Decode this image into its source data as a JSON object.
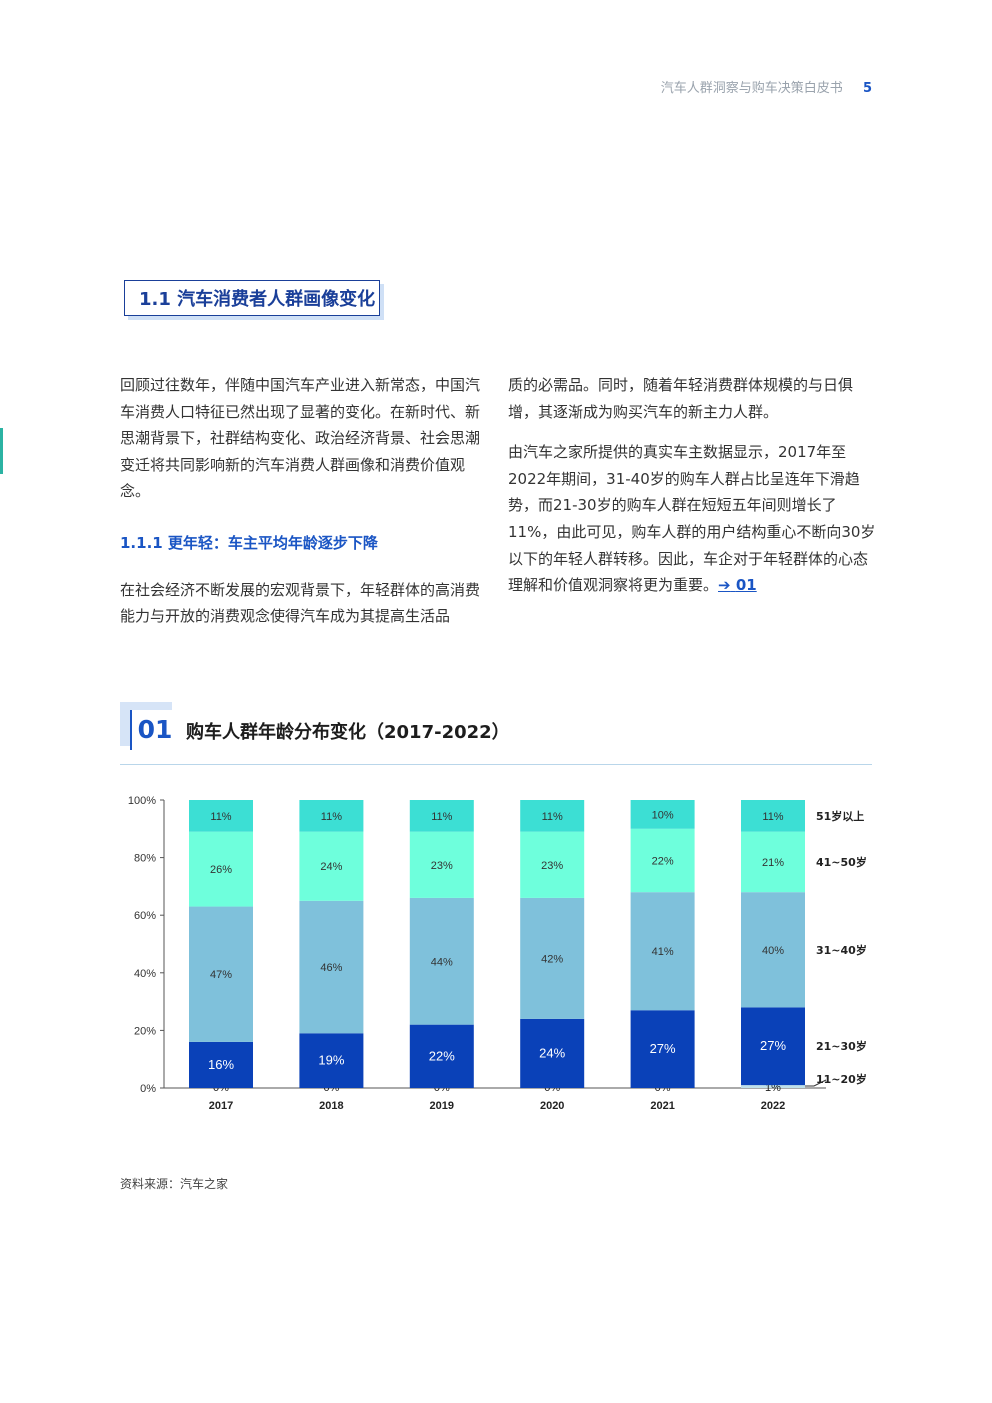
{
  "header": {
    "doc_title": "汽车人群洞察与购车决策白皮书",
    "page_number": "5"
  },
  "section": {
    "title": "1.1 汽车消费者人群画像变化"
  },
  "body": {
    "left_para1": "回顾过往数年，伴随中国汽车产业进入新常态，中国汽车消费人口特征已然出现了显著的变化。在新时代、新思潮背景下，社群结构变化、政治经济背景、社会思潮变迁将共同影响新的汽车消费人群画像和消费价值观念。",
    "subsection_title": "1.1.1 更年轻：车主平均年龄逐步下降",
    "left_para2": "在社会经济不断发展的宏观背景下，年轻群体的高消费能力与开放的消费观念使得汽车成为其提高生活品",
    "right_para1": "质的必需品。同时，随着年轻消费群体规模的与日俱增，其逐渐成为购买汽车的新主力人群。",
    "right_para2": "由汽车之家所提供的真实车主数据显示，2017年至2022年期间，31-40岁的购车人群占比呈连年下滑趋势，而21-30岁的购车人群在短短五年间则增长了11%，由此可见，购车人群的用户结构重心不断向30岁以下的年轻人群转移。因此，车企对于年轻群体的心态理解和价值观洞察将更为重要。",
    "ref_arrow": "➔",
    "ref_link": "01"
  },
  "figure": {
    "number": "01",
    "title": "购车人群年龄分布变化（2017-2022）"
  },
  "chart_data": {
    "type": "bar",
    "stacked": true,
    "categories": [
      "2017",
      "2018",
      "2019",
      "2020",
      "2021",
      "2022"
    ],
    "ylim": [
      0,
      100
    ],
    "yticks": [
      "0%",
      "20%",
      "40%",
      "60%",
      "80%",
      "100%"
    ],
    "series": [
      {
        "name": "11~20岁",
        "values": [
          0,
          0,
          0,
          0,
          0,
          1
        ],
        "labels": [
          "0%",
          "0%",
          "0%",
          "0%",
          "0%",
          "1%"
        ],
        "color": "#bfe0ea"
      },
      {
        "name": "21~30岁",
        "values": [
          16,
          19,
          22,
          24,
          27,
          27
        ],
        "labels": [
          "16%",
          "19%",
          "22%",
          "24%",
          "27%",
          "27%"
        ],
        "color": "#0a41b8"
      },
      {
        "name": "31~40岁",
        "values": [
          47,
          46,
          44,
          42,
          41,
          40
        ],
        "labels": [
          "47%",
          "46%",
          "44%",
          "42%",
          "41%",
          "40%"
        ],
        "color": "#7fc1db"
      },
      {
        "name": "41~50岁",
        "values": [
          26,
          24,
          23,
          23,
          22,
          21
        ],
        "labels": [
          "26%",
          "24%",
          "23%",
          "23%",
          "22%",
          "21%"
        ],
        "color": "#6effdc"
      },
      {
        "name": "51岁以上",
        "values": [
          11,
          11,
          11,
          11,
          10,
          11
        ],
        "labels": [
          "11%",
          "11%",
          "11%",
          "11%",
          "10%",
          "11%"
        ],
        "color": "#3cdfd4"
      }
    ],
    "legend_position": "right"
  },
  "source": {
    "text": "资料来源：汽车之家"
  }
}
